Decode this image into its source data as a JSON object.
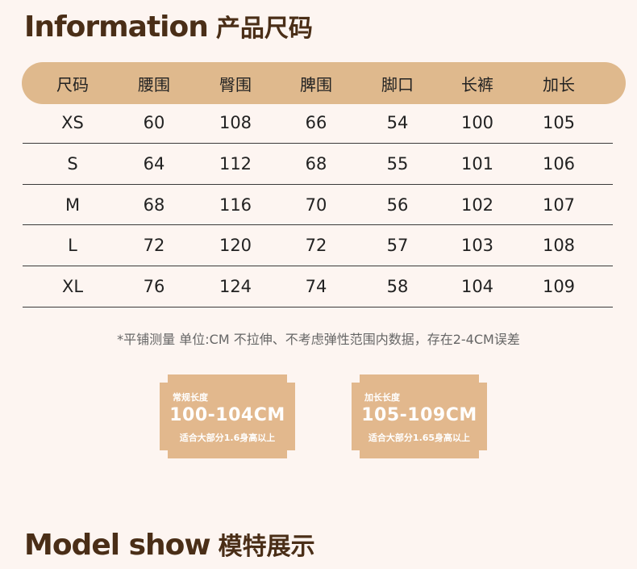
{
  "headings": {
    "info_en": "Information",
    "info_zh": "产品尺码",
    "model_en": "Model show",
    "model_zh": "模特展示"
  },
  "size_table": {
    "columns": [
      "尺码",
      "腰围",
      "臀围",
      "脾围",
      "脚口",
      "长裤",
      "加长"
    ],
    "rows": [
      [
        "XS",
        "60",
        "108",
        "66",
        "54",
        "100",
        "105"
      ],
      [
        "S",
        "64",
        "112",
        "68",
        "55",
        "101",
        "106"
      ],
      [
        "M",
        "68",
        "116",
        "70",
        "56",
        "102",
        "107"
      ],
      [
        "L",
        "72",
        "120",
        "72",
        "57",
        "103",
        "108"
      ],
      [
        "XL",
        "76",
        "124",
        "74",
        "58",
        "104",
        "109"
      ]
    ]
  },
  "note": "*平铺测量 单位:CM 不拉伸、不考虑弹性范围内数据，存在2-4CM误差",
  "badges": [
    {
      "title": "常规长度",
      "range": "100-104CM",
      "desc": "适合大部分1.6身高以上"
    },
    {
      "title": "加长长度",
      "range": "105-109CM",
      "desc": "适合大部分1.65身高以上"
    }
  ],
  "colors": {
    "background": "#fdf5f1",
    "header_band": "#dfb98d",
    "badge": "#e2b88d",
    "heading_text": "#4a2e17"
  }
}
